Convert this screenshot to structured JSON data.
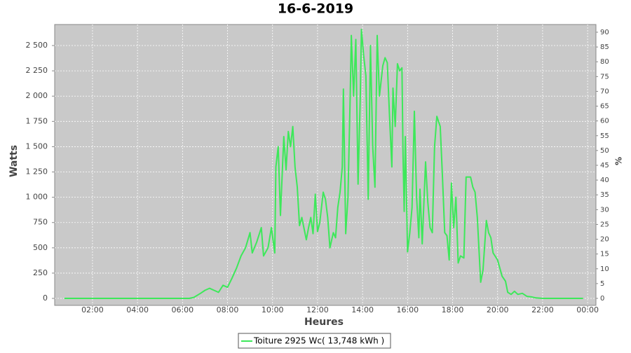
{
  "chart_data": {
    "type": "line",
    "title": "16-6-2019",
    "x_label": "Heures",
    "y_label": "Watts",
    "y2_label": "%",
    "xlim": [
      0.32,
      24.37
    ],
    "xticks": [
      {
        "value": 2,
        "label": "02:00"
      },
      {
        "value": 4,
        "label": "04:00"
      },
      {
        "value": 6,
        "label": "06:00"
      },
      {
        "value": 8,
        "label": "08:00"
      },
      {
        "value": 10,
        "label": "10:00"
      },
      {
        "value": 12,
        "label": "12:00"
      },
      {
        "value": 14,
        "label": "14:00"
      },
      {
        "value": 16,
        "label": "16:00"
      },
      {
        "value": 18,
        "label": "18:00"
      },
      {
        "value": 20,
        "label": "20:00"
      },
      {
        "value": 22,
        "label": "22:00"
      },
      {
        "value": 24,
        "label": "00:00"
      }
    ],
    "ylim": [
      -69,
      2708
    ],
    "yticks": [
      0,
      250,
      500,
      750,
      {
        "value": 1000,
        "label": "1 000"
      },
      {
        "value": 1250,
        "label": "1 250"
      },
      {
        "value": 1500,
        "label": "1 500"
      },
      {
        "value": 1750,
        "label": "1 750"
      },
      {
        "value": 2000,
        "label": "2 000"
      },
      {
        "value": 2250,
        "label": "2 250"
      },
      {
        "value": 2500,
        "label": "2 500"
      }
    ],
    "y2lim": [
      -2.37,
      92.6
    ],
    "y2ticks": [
      0,
      5,
      10,
      15,
      20,
      25,
      30,
      35,
      40,
      45,
      50,
      55,
      60,
      65,
      70,
      75,
      80,
      85,
      90
    ],
    "grid": true,
    "legend": "bottom",
    "x": [
      0.75,
      2,
      4,
      6,
      6.3,
      6.5,
      6.8,
      7.0,
      7.2,
      7.4,
      7.6,
      7.8,
      8.0,
      8.2,
      8.4,
      8.6,
      8.8,
      9.0,
      9.1,
      9.3,
      9.5,
      9.6,
      9.8,
      9.95,
      10.1,
      10.15,
      10.25,
      10.35,
      10.5,
      10.6,
      10.7,
      10.8,
      10.9,
      11.0,
      11.1,
      11.2,
      11.3,
      11.5,
      11.6,
      11.7,
      11.8,
      11.9,
      12.0,
      12.1,
      12.25,
      12.35,
      12.45,
      12.55,
      12.7,
      12.8,
      12.9,
      13.0,
      13.1,
      13.15,
      13.25,
      13.35,
      13.45,
      13.5,
      13.6,
      13.7,
      13.8,
      13.9,
      13.95,
      14.05,
      14.15,
      14.25,
      14.35,
      14.45,
      14.55,
      14.65,
      14.75,
      14.9,
      15.0,
      15.1,
      15.2,
      15.3,
      15.35,
      15.45,
      15.55,
      15.65,
      15.75,
      15.8,
      15.85,
      15.9,
      16.0,
      16.1,
      16.2,
      16.3,
      16.4,
      16.5,
      16.55,
      16.65,
      16.8,
      16.9,
      17.0,
      17.1,
      17.2,
      17.3,
      17.45,
      17.55,
      17.65,
      17.75,
      17.85,
      17.95,
      18.05,
      18.15,
      18.25,
      18.35,
      18.5,
      18.6,
      18.7,
      18.8,
      18.9,
      19.0,
      19.1,
      19.25,
      19.35,
      19.5,
      19.6,
      19.7,
      19.8,
      20.0,
      20.2,
      20.35,
      20.45,
      20.6,
      20.75,
      20.9,
      21.1,
      21.3,
      21.5,
      21.7,
      22.0,
      23.8
    ],
    "series": [
      {
        "name": "Toiture 2925 Wc( 13,748 kWh )",
        "color": "#3de85a",
        "values": [
          0,
          0,
          0,
          0,
          0,
          10,
          50,
          80,
          100,
          80,
          60,
          130,
          110,
          200,
          300,
          420,
          500,
          650,
          450,
          560,
          700,
          420,
          500,
          700,
          450,
          1300,
          1500,
          820,
          1600,
          1270,
          1650,
          1500,
          1700,
          1300,
          1100,
          720,
          800,
          580,
          700,
          800,
          640,
          1030,
          660,
          750,
          1050,
          980,
          800,
          500,
          650,
          600,
          900,
          1050,
          1300,
          2070,
          640,
          1000,
          2000,
          2600,
          2000,
          2560,
          1130,
          2000,
          2660,
          2400,
          2200,
          980,
          2500,
          1500,
          1100,
          2600,
          2000,
          2300,
          2380,
          2330,
          1800,
          1300,
          2080,
          1700,
          2320,
          2250,
          2280,
          1400,
          860,
          1600,
          460,
          650,
          900,
          1850,
          1000,
          600,
          1080,
          540,
          1350,
          950,
          700,
          650,
          1500,
          1800,
          1700,
          1200,
          650,
          620,
          380,
          1140,
          700,
          1000,
          350,
          420,
          400,
          1200,
          1200,
          1200,
          1100,
          1050,
          800,
          160,
          280,
          770,
          650,
          600,
          450,
          380,
          220,
          170,
          60,
          40,
          70,
          40,
          50,
          20,
          15,
          5,
          0,
          0
        ]
      }
    ]
  }
}
